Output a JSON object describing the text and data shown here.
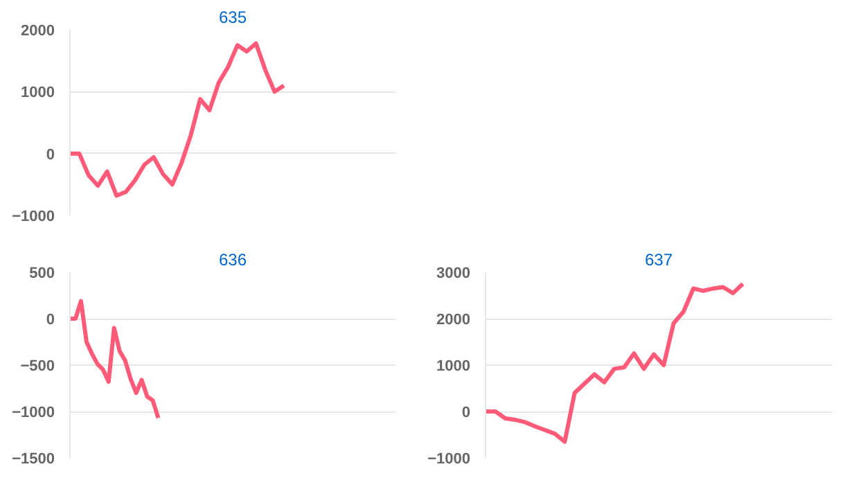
{
  "chart_data": [
    {
      "type": "line",
      "title": "635",
      "categories": [
        null,
        null,
        null,
        null,
        null,
        null,
        null,
        null,
        null,
        null,
        null,
        null,
        null,
        null,
        null,
        null,
        null,
        null,
        null,
        null,
        null,
        null,
        null,
        null,
        null,
        null,
        null,
        null,
        null,
        null,
        null,
        null,
        null,
        null,
        null,
        null
      ],
      "series": [
        {
          "color": "#ff5a78",
          "values": [
            0,
            0,
            -350,
            -520,
            -290,
            -680,
            -620,
            -430,
            -180,
            -60,
            -330,
            -500,
            -150,
            300,
            880,
            700,
            1150,
            1400,
            1750,
            1650,
            1780,
            1350,
            1000,
            1100,
            null,
            null,
            null,
            null,
            null,
            null,
            null,
            null,
            null,
            null,
            null,
            null
          ]
        }
      ],
      "ylim": [
        -1000,
        2000
      ],
      "yticks": [
        -1000,
        0,
        1000,
        2000
      ],
      "grid": "y",
      "tick_labels": "y"
    },
    {
      "type": "line",
      "title": "636",
      "categories": [
        null,
        null,
        null,
        null,
        null,
        null,
        null,
        null,
        null,
        null,
        null,
        null,
        null,
        null,
        null,
        null,
        null,
        null,
        null,
        null,
        null,
        null,
        null,
        null,
        null,
        null,
        null,
        null,
        null,
        null,
        null,
        null,
        null,
        null,
        null,
        null,
        null,
        null,
        null,
        null,
        null,
        null,
        null,
        null,
        null,
        null,
        null,
        null,
        null,
        null,
        null,
        null,
        null,
        null,
        null,
        null,
        null,
        null,
        null,
        null
      ],
      "series": [
        {
          "color": "#ff5a78",
          "values": [
            0,
            0,
            190,
            -250,
            -380,
            -490,
            -550,
            -680,
            -100,
            -350,
            -450,
            -650,
            -800,
            -660,
            -840,
            -880,
            -1070,
            null,
            null,
            null,
            null,
            null,
            null,
            null,
            null,
            null,
            null,
            null,
            null,
            null,
            null,
            null,
            null,
            null,
            null,
            null,
            null,
            null,
            null,
            null,
            null,
            null,
            null,
            null,
            null,
            null,
            null,
            null,
            null,
            null,
            null,
            null,
            null,
            null,
            null,
            null,
            null,
            null,
            null,
            null
          ]
        }
      ],
      "ylim": [
        -1500,
        500
      ],
      "yticks": [
        -1500,
        -1000,
        -500,
        0,
        500
      ],
      "grid": "y",
      "tick_labels": "y"
    },
    {
      "type": "line",
      "title": "637",
      "categories": [
        null,
        null,
        null,
        null,
        null,
        null,
        null,
        null,
        null,
        null,
        null,
        null,
        null,
        null,
        null,
        null,
        null,
        null,
        null,
        null,
        null,
        null,
        null,
        null,
        null,
        null,
        null,
        null,
        null,
        null,
        null,
        null,
        null,
        null,
        null,
        null
      ],
      "series": [
        {
          "color": "#ff5a78",
          "values": [
            0,
            0,
            -150,
            -180,
            -230,
            -320,
            -400,
            -480,
            -650,
            400,
            600,
            800,
            630,
            920,
            950,
            1250,
            920,
            1230,
            1000,
            1900,
            2150,
            2650,
            2600,
            2650,
            2680,
            2550,
            2750,
            null,
            null,
            null,
            null,
            null,
            null,
            null,
            null,
            null
          ]
        }
      ],
      "ylim": [
        -1000,
        3000
      ],
      "yticks": [
        -1000,
        0,
        1000,
        2000,
        3000
      ],
      "grid": "y",
      "tick_labels": "y"
    }
  ]
}
